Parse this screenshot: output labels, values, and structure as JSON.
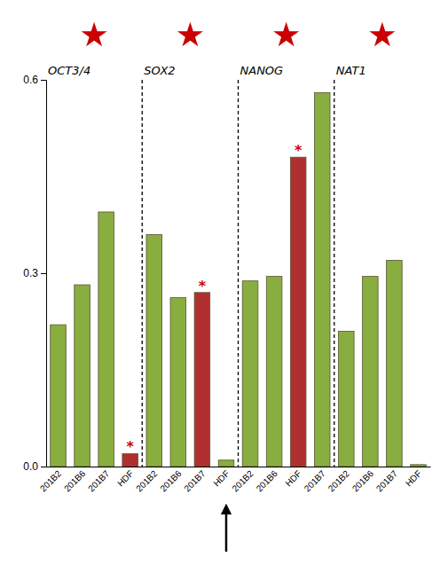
{
  "chart_data": {
    "type": "bar",
    "categories": [
      "201B2",
      "201B6",
      "201B7",
      "HDF",
      "201B2",
      "201B6",
      "201B7",
      "HDF",
      "201B2",
      "201B6",
      "HDF",
      "201B7",
      "201B2",
      "201B6",
      "201B7",
      "HDF"
    ],
    "values": [
      0.22,
      0.282,
      0.395,
      0.02,
      0.36,
      0.262,
      0.27,
      0.01,
      0.288,
      0.295,
      0.48,
      0.58,
      0.21,
      0.295,
      0.32,
      0.003
    ],
    "colors": [
      "#8aad40",
      "#8aad40",
      "#8aad40",
      "#b03030",
      "#8aad40",
      "#8aad40",
      "#b03030",
      "#8aad40",
      "#8aad40",
      "#8aad40",
      "#b03030",
      "#8aad40",
      "#8aad40",
      "#8aad40",
      "#8aad40",
      "#8aad40"
    ],
    "group_labels": [
      "OCT3/4",
      "SOX2",
      "NANOG",
      "NAT1"
    ],
    "annotations": [
      {
        "type": "text",
        "text": "*",
        "index": 3,
        "color": "#cc0000"
      },
      {
        "type": "text",
        "text": "*",
        "index": 6,
        "color": "#cc0000"
      },
      {
        "type": "text",
        "text": "*",
        "index": 10,
        "color": "#cc0000"
      },
      {
        "type": "arrow",
        "index": 7
      }
    ],
    "ylim": [
      0,
      0.6
    ],
    "yticks": [
      {
        "value": 0,
        "label": "0.0"
      },
      0.3,
      0.6
    ],
    "grid": false
  }
}
